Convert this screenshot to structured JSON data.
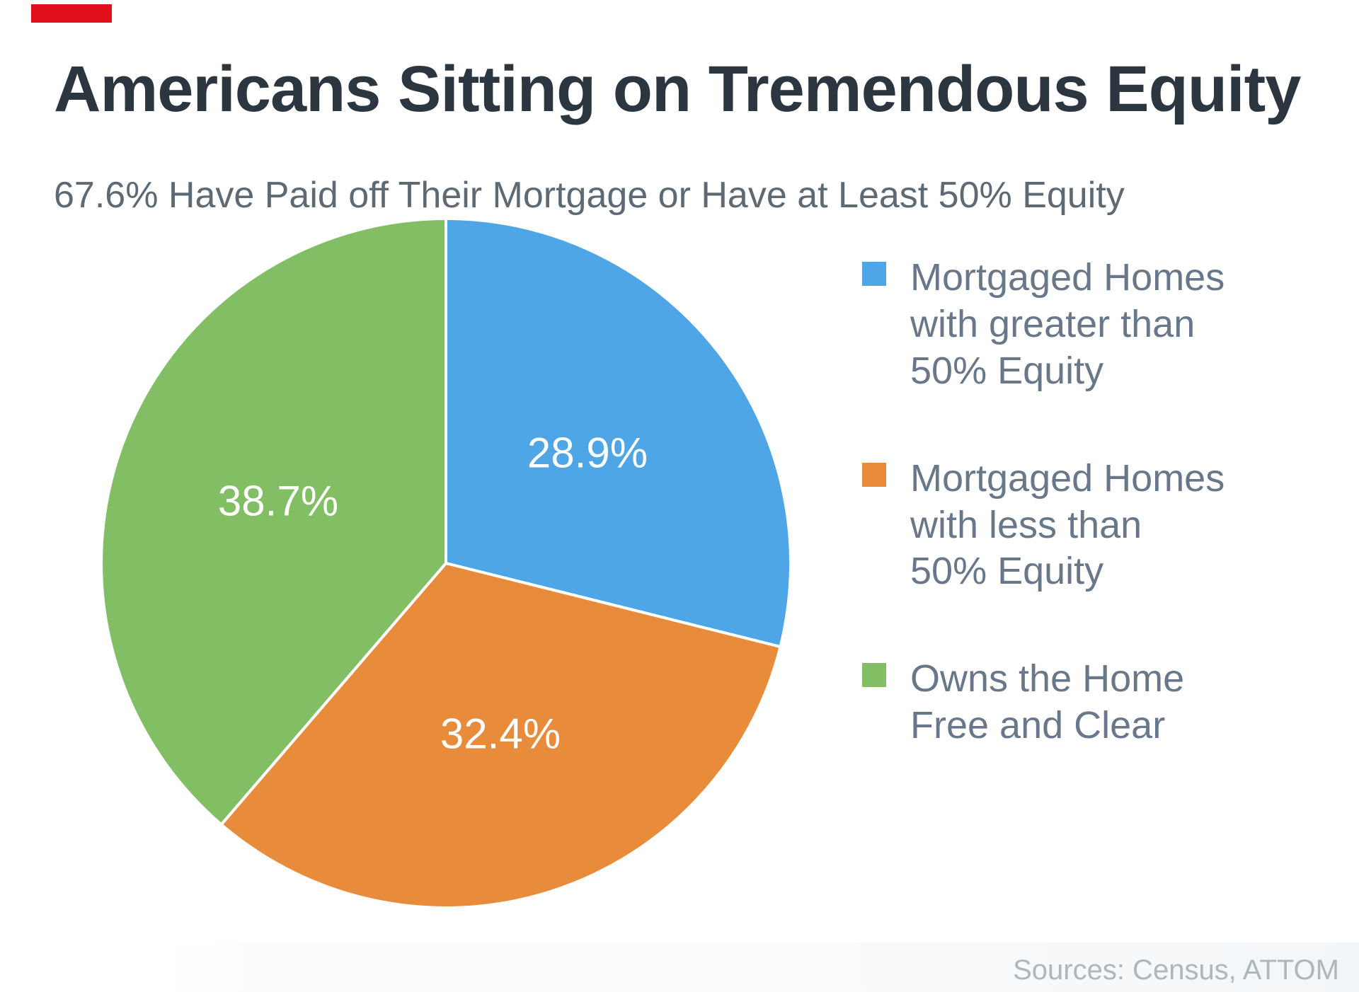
{
  "accent_bar": {
    "color": "#E2101C"
  },
  "chart_data": {
    "type": "pie",
    "title": "Americans Sitting on Tremendous Equity",
    "subtitle": "67.6% Have Paid off Their Mortgage or Have at Least 50% Equity",
    "start_angle_deg": 0,
    "direction": "clockwise",
    "legend_position": "right",
    "label_radius_factor": 0.52,
    "slices": [
      {
        "label": "Mortgaged Homes with greater than 50% Equity",
        "label_lines": [
          "Mortgaged Homes",
          "with greater than",
          "50% Equity"
        ],
        "value_pct": 28.9,
        "value_label": "28.9%",
        "color": "#4EA6E6"
      },
      {
        "label": "Mortgaged Homes with less than 50% Equity",
        "label_lines": [
          "Mortgaged Homes",
          "with less than",
          "50% Equity"
        ],
        "value_pct": 32.4,
        "value_label": "32.4%",
        "color": "#E88C3C"
      },
      {
        "label": "Owns the Home Free and Clear",
        "label_lines": [
          "Owns the Home",
          "Free and Clear"
        ],
        "value_pct": 38.7,
        "value_label": "38.7%",
        "color": "#82BE63"
      }
    ],
    "source": "Sources: Census, ATTOM"
  }
}
